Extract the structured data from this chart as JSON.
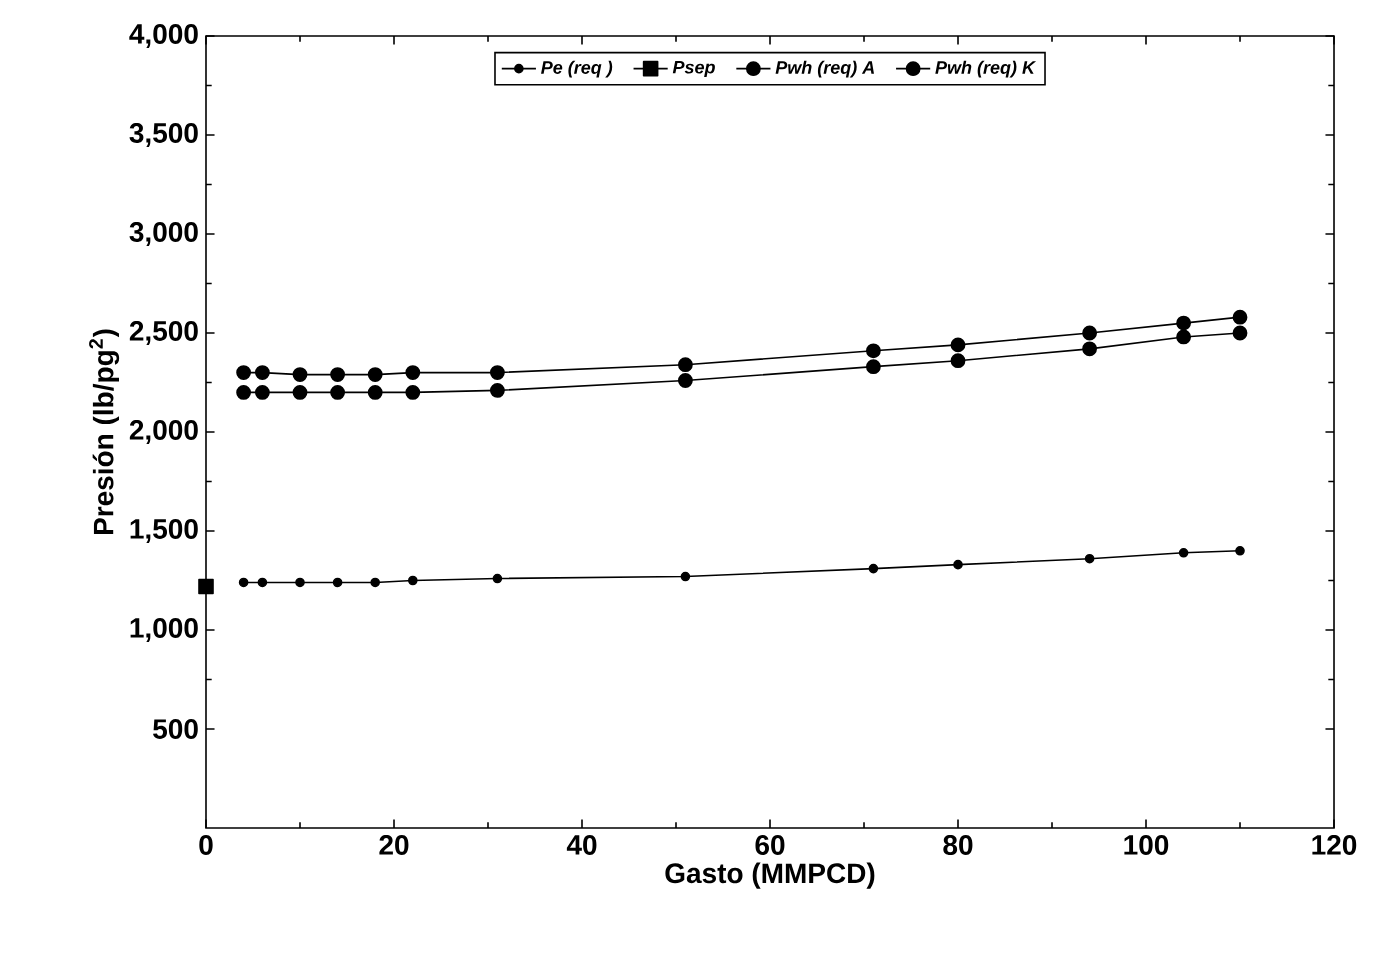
{
  "chart_data": {
    "type": "line",
    "xlabel": "Gasto (MMPCD)",
    "ylabel": "Presión (lb/pg$^{2}$)",
    "xlim": [
      0,
      120
    ],
    "xticks": [
      0,
      20,
      40,
      60,
      80,
      100,
      120
    ],
    "ylim": [
      0,
      4000
    ],
    "yticks": [
      500,
      {
        "value": 1000,
        "label": "1,000"
      },
      {
        "value": 1500,
        "label": "1,500"
      },
      {
        "value": 2000,
        "label": "2,000"
      },
      {
        "value": 2500,
        "label": "2,500"
      },
      {
        "value": 3000,
        "label": "3,000"
      },
      {
        "value": 3500,
        "label": "3,500"
      },
      {
        "value": 4000,
        "label": "4,000"
      }
    ],
    "grid": false,
    "legend": "top",
    "line_style": "solid",
    "series": [
      {
        "name": "Pe (req )",
        "color": "#000000",
        "marker": "circle",
        "x": [
          4,
          6,
          10,
          14,
          18,
          22,
          31,
          51,
          71,
          80,
          94,
          104,
          110
        ],
        "values": [
          1240,
          1240,
          1240,
          1240,
          1240,
          1250,
          1260,
          1270,
          1310,
          1330,
          1360,
          1390,
          1400
        ]
      },
      {
        "name": "Psep",
        "color": "#000000",
        "marker": "square",
        "x": [
          0
        ],
        "values": [
          1220
        ]
      },
      {
        "name": "Pwh (req) A",
        "color": "#000000",
        "marker": "circle",
        "x": [
          4,
          6,
          10,
          14,
          18,
          22,
          31,
          51,
          71,
          80,
          94,
          104,
          110
        ],
        "values": [
          2300,
          2300,
          2290,
          2290,
          2290,
          2300,
          2300,
          2340,
          2410,
          2440,
          2500,
          2550,
          2580
        ]
      },
      {
        "name": "Pwh (req) K",
        "color": "#000000",
        "marker": "circle",
        "x": [
          4,
          6,
          10,
          14,
          18,
          22,
          31,
          51,
          71,
          80,
          94,
          104,
          110
        ],
        "values": [
          2200,
          2200,
          2200,
          2200,
          2200,
          2200,
          2210,
          2260,
          2330,
          2360,
          2420,
          2480,
          2500
        ]
      }
    ]
  }
}
